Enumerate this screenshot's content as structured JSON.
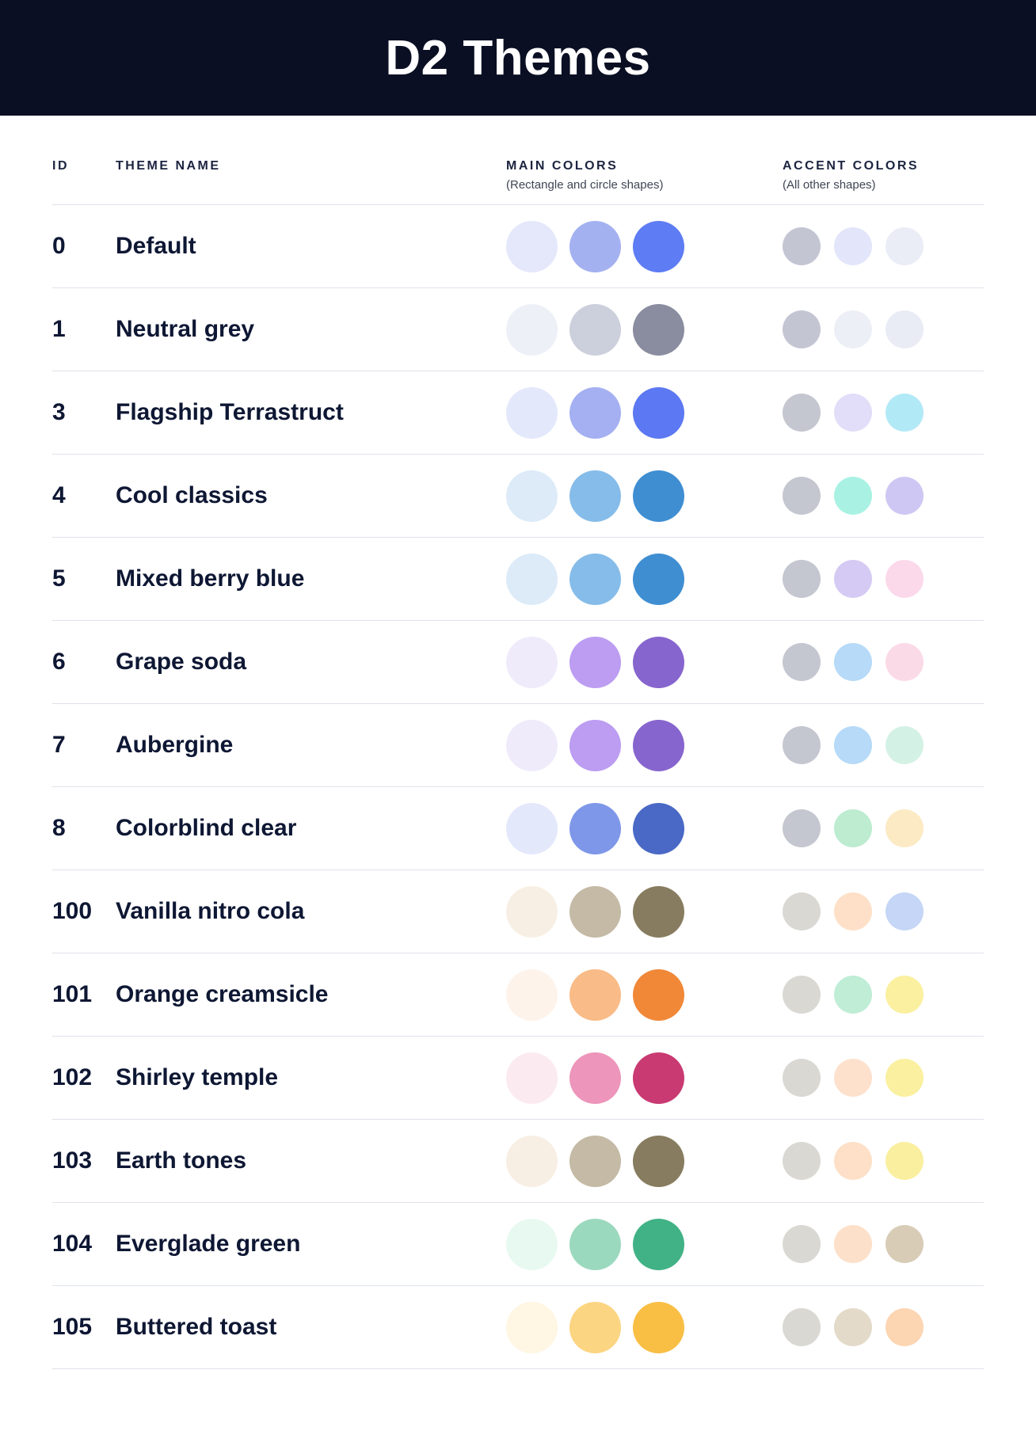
{
  "theme": {
    "bar_bg": "#0A0F23",
    "divider_color": "#DFE2EB",
    "text_color": "#0E1733"
  },
  "header": {
    "title": "D2 Themes"
  },
  "table": {
    "columns": {
      "id_label": "ID",
      "name_label": "THEME NAME",
      "main_label": "MAIN COLORS",
      "main_sublabel": "(Rectangle and circle shapes)",
      "accent_label": "ACCENT COLORS",
      "accent_sublabel": "(All other shapes)"
    },
    "rows": [
      {
        "id": "0",
        "name": "Default",
        "main_colors": [
          "#E5E8FB",
          "#A4B1F1",
          "#5E7CF3"
        ],
        "accent_colors": [
          "#C3C5D3",
          "#E3E6FA",
          "#EAEDF6"
        ]
      },
      {
        "id": "1",
        "name": "Neutral grey",
        "main_colors": [
          "#EDF0F7",
          "#CCCFDC",
          "#8A8DA0"
        ],
        "accent_colors": [
          "#C3C5D3",
          "#EDEFF6",
          "#E9ECF5"
        ]
      },
      {
        "id": "3",
        "name": "Flagship Terrastruct",
        "main_colors": [
          "#E4E8FB",
          "#A4B0F1",
          "#5C78F2"
        ],
        "accent_colors": [
          "#C4C6D0",
          "#E2DDF8",
          "#B2E9F7"
        ]
      },
      {
        "id": "4",
        "name": "Cool classics",
        "main_colors": [
          "#DDEBF8",
          "#86BCE9",
          "#3F8ED2"
        ],
        "accent_colors": [
          "#C4C6D0",
          "#A9F2E3",
          "#CFC7F3"
        ]
      },
      {
        "id": "5",
        "name": "Mixed berry blue",
        "main_colors": [
          "#DDEBF8",
          "#86BCE9",
          "#3F8ED2"
        ],
        "accent_colors": [
          "#C4C6D0",
          "#D5CAF3",
          "#FBD9EA"
        ]
      },
      {
        "id": "6",
        "name": "Grape soda",
        "main_colors": [
          "#EFEBFB",
          "#BC9DF2",
          "#8765CE"
        ],
        "accent_colors": [
          "#C4C6D0",
          "#B6DAF8",
          "#FBDAE7"
        ]
      },
      {
        "id": "7",
        "name": "Aubergine",
        "main_colors": [
          "#EFEBFB",
          "#BC9DF2",
          "#8765CE"
        ],
        "accent_colors": [
          "#C4C6D0",
          "#B6DAF8",
          "#D4F1E5"
        ]
      },
      {
        "id": "8",
        "name": "Colorblind clear",
        "main_colors": [
          "#E4E8FB",
          "#7E97E9",
          "#4A69C6"
        ],
        "accent_colors": [
          "#C4C6D0",
          "#BDECD0",
          "#FBEAC4"
        ]
      },
      {
        "id": "100",
        "name": "Vanilla nitro cola",
        "main_colors": [
          "#F8EFE4",
          "#C4BAA5",
          "#877C5F"
        ],
        "accent_colors": [
          "#DAD8D3",
          "#FDE0C7",
          "#C5D6F6"
        ]
      },
      {
        "id": "101",
        "name": "Orange creamsicle",
        "main_colors": [
          "#FEF3EB",
          "#F9BB87",
          "#F08838"
        ],
        "accent_colors": [
          "#DAD8D3",
          "#BFEDD6",
          "#FAF0A0"
        ]
      },
      {
        "id": "102",
        "name": "Shirley temple",
        "main_colors": [
          "#FCEAF1",
          "#ED95BA",
          "#C93A72"
        ],
        "accent_colors": [
          "#DAD8D3",
          "#FDE1CD",
          "#FAF0A0"
        ]
      },
      {
        "id": "103",
        "name": "Earth tones",
        "main_colors": [
          "#F8EFE4",
          "#C4BAA5",
          "#877C5F"
        ],
        "accent_colors": [
          "#DAD8D3",
          "#FDE0C7",
          "#FAEF9F"
        ]
      },
      {
        "id": "104",
        "name": "Everglade green",
        "main_colors": [
          "#E8F9F2",
          "#9BD9BE",
          "#41B286"
        ],
        "accent_colors": [
          "#DAD8D3",
          "#FDE0C9",
          "#D8CCB7"
        ]
      },
      {
        "id": "105",
        "name": "Buttered toast",
        "main_colors": [
          "#FFF6E3",
          "#FCD582",
          "#F9BE44"
        ],
        "accent_colors": [
          "#DAD8D3",
          "#E3DAC9",
          "#FCD5B2"
        ]
      }
    ]
  }
}
